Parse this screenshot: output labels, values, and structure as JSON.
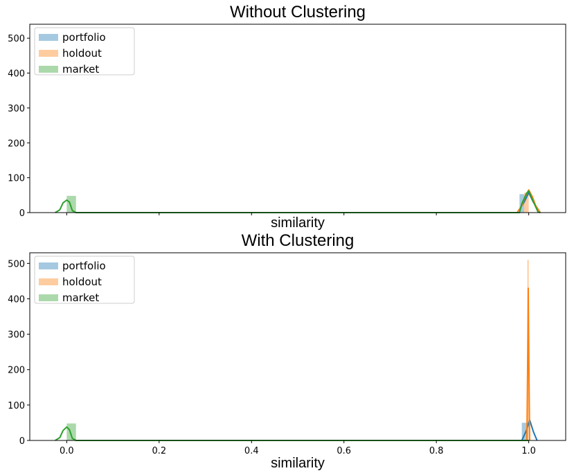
{
  "chart_data": [
    {
      "type": "histogram",
      "title": "Without Clustering",
      "xlabel": "similarity",
      "ylabel": "",
      "xlim": [
        -0.08,
        1.08
      ],
      "ylim": [
        0,
        540
      ],
      "x_ticks": [
        0.0,
        0.2,
        0.4,
        0.6,
        0.8,
        1.0
      ],
      "x_tick_labels_shown": false,
      "y_ticks": [
        0,
        100,
        200,
        300,
        400,
        500
      ],
      "y_tick_labels": [
        "0",
        "100",
        "200",
        "300",
        "400",
        "500"
      ],
      "legend_position": "upper left",
      "series": [
        {
          "name": "portfolio",
          "color": "#1f77b4",
          "bins": [
            {
              "x0": 0.98,
              "x1": 0.99,
              "count": 53
            }
          ],
          "kde": [
            [
              0.975,
              0
            ],
            [
              0.99,
              30
            ],
            [
              1.0,
              57
            ],
            [
              1.01,
              30
            ],
            [
              1.025,
              0
            ]
          ]
        },
        {
          "name": "holdout",
          "color": "#ff7f0e",
          "bins": [
            {
              "x0": 0.99,
              "x1": 1.0,
              "count": 57
            }
          ],
          "kde": [
            [
              0.975,
              0
            ],
            [
              0.985,
              20
            ],
            [
              0.992,
              45
            ],
            [
              1.0,
              65
            ],
            [
              1.008,
              45
            ],
            [
              1.015,
              20
            ],
            [
              1.025,
              0
            ]
          ]
        },
        {
          "name": "market",
          "color": "#2ca02c",
          "bins": [
            {
              "x0": 0.0,
              "x1": 0.02,
              "count": 48
            }
          ],
          "kde": [
            [
              -0.025,
              0
            ],
            [
              -0.015,
              8
            ],
            [
              -0.008,
              28
            ],
            [
              0.0,
              36
            ],
            [
              0.006,
              30
            ],
            [
              0.012,
              6
            ],
            [
              0.02,
              0
            ],
            [
              0.98,
              0
            ],
            [
              0.985,
              25
            ],
            [
              0.995,
              55
            ],
            [
              1.0,
              62
            ],
            [
              1.007,
              40
            ],
            [
              1.02,
              2
            ],
            [
              1.025,
              0
            ]
          ]
        }
      ]
    },
    {
      "type": "histogram",
      "title": "With Clustering",
      "xlabel": "similarity",
      "ylabel": "",
      "xlim": [
        -0.08,
        1.08
      ],
      "ylim": [
        0,
        530
      ],
      "x_ticks": [
        0.0,
        0.2,
        0.4,
        0.6,
        0.8,
        1.0
      ],
      "x_tick_labels": [
        "0.0",
        "0.2",
        "0.4",
        "0.6",
        "0.8",
        "1.0"
      ],
      "y_ticks": [
        0,
        100,
        200,
        300,
        400,
        500
      ],
      "y_tick_labels": [
        "0",
        "100",
        "200",
        "300",
        "400",
        "500"
      ],
      "legend_position": "upper left",
      "series": [
        {
          "name": "portfolio",
          "color": "#1f77b4",
          "bins": [
            {
              "x0": 0.985,
              "x1": 0.998,
              "count": 50
            }
          ],
          "kde": [
            [
              0.985,
              0
            ],
            [
              0.995,
              28
            ],
            [
              1.002,
              58
            ],
            [
              1.01,
              25
            ],
            [
              1.018,
              0
            ]
          ]
        },
        {
          "name": "holdout",
          "color": "#ff7f0e",
          "bins": [
            {
              "x0": 0.997,
              "x1": 1.0,
              "count": 510
            }
          ],
          "kde": [
            [
              0.996,
              0
            ],
            [
              0.9975,
              200
            ],
            [
              0.999,
              430
            ],
            [
              1.0005,
              200
            ],
            [
              1.002,
              0
            ]
          ]
        },
        {
          "name": "market",
          "color": "#2ca02c",
          "bins": [
            {
              "x0": 0.0,
              "x1": 0.02,
              "count": 48
            }
          ],
          "kde": [
            [
              -0.025,
              0
            ],
            [
              -0.015,
              8
            ],
            [
              -0.008,
              28
            ],
            [
              0.0,
              38
            ],
            [
              0.006,
              30
            ],
            [
              0.012,
              6
            ],
            [
              0.02,
              0
            ],
            [
              1.0,
              0
            ]
          ]
        }
      ]
    }
  ]
}
